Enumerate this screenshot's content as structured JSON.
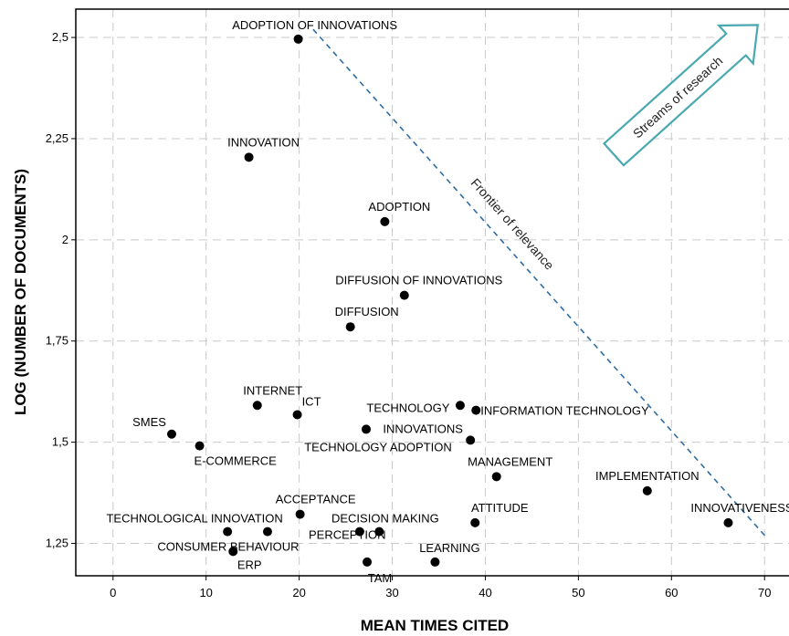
{
  "chart_data": {
    "type": "scatter",
    "xlabel": "MEAN TIMES CITED",
    "ylabel": "LOG (NUMBER OF DOCUMENTS)",
    "xlim": [
      -4,
      74
    ],
    "ylim": [
      1.17,
      2.57
    ],
    "x_ticks": [
      {
        "value": 0,
        "label": "0"
      },
      {
        "value": 10,
        "label": "10"
      },
      {
        "value": 20,
        "label": "20"
      },
      {
        "value": 30,
        "label": "30"
      },
      {
        "value": 40,
        "label": "40"
      },
      {
        "value": 50,
        "label": "50"
      },
      {
        "value": 60,
        "label": "60"
      },
      {
        "value": 70,
        "label": "70"
      }
    ],
    "y_ticks": [
      {
        "value": 1.25,
        "label": "1,25"
      },
      {
        "value": 1.5,
        "label": "1,5"
      },
      {
        "value": 1.75,
        "label": "1,75"
      },
      {
        "value": 2.0,
        "label": "2"
      },
      {
        "value": 2.25,
        "label": "2,25"
      },
      {
        "value": 2.5,
        "label": "2,5"
      }
    ],
    "grid": true,
    "marker_color": "#000000",
    "points": [
      {
        "label": "ADOPTION OF INNOVATIONS",
        "x": 19.9,
        "y": 2.496
      },
      {
        "label": "INNOVATION",
        "x": 14.6,
        "y": 2.204
      },
      {
        "label": "ADOPTION",
        "x": 29.2,
        "y": 2.045
      },
      {
        "label": "DIFFUSION OF INNOVATIONS",
        "x": 31.3,
        "y": 1.863
      },
      {
        "label": "DIFFUSION",
        "x": 25.5,
        "y": 1.785
      },
      {
        "label": "INTERNET",
        "x": 15.5,
        "y": 1.591
      },
      {
        "label": "ICT",
        "x": 19.8,
        "y": 1.568
      },
      {
        "label": "TECHNOLOGY",
        "x": 37.3,
        "y": 1.591
      },
      {
        "label": "INFORMATION TECHNOLOGY",
        "x": 39.0,
        "y": 1.579
      },
      {
        "label": "SMES",
        "x": 6.3,
        "y": 1.52
      },
      {
        "label": "E-COMMERCE",
        "x": 9.3,
        "y": 1.491
      },
      {
        "label": "TECHNOLOGY ADOPTION",
        "x": 27.2,
        "y": 1.532
      },
      {
        "label": "INNOVATIONS",
        "x": 38.4,
        "y": 1.505
      },
      {
        "label": "MANAGEMENT",
        "x": 41.2,
        "y": 1.415
      },
      {
        "label": "IMPLEMENTATION",
        "x": 57.4,
        "y": 1.38
      },
      {
        "label": "INNOVATIVENESS",
        "x": 66.1,
        "y": 1.301
      },
      {
        "label": "ACCEPTANCE",
        "x": 20.1,
        "y": 1.322
      },
      {
        "label": "ATTITUDE",
        "x": 38.9,
        "y": 1.301
      },
      {
        "label": "TECHNOLOGICAL INNOVATION",
        "x": 12.3,
        "y": 1.279
      },
      {
        "label": "CONSUMER BEHAVIOUR",
        "x": 16.6,
        "y": 1.279
      },
      {
        "label": "ERP",
        "x": 12.9,
        "y": 1.23
      },
      {
        "label": "DECISION MAKING",
        "x": 26.5,
        "y": 1.279
      },
      {
        "label": "PERCEPTION",
        "x": 28.6,
        "y": 1.279
      },
      {
        "label": "TAM",
        "x": 27.3,
        "y": 1.204
      },
      {
        "label": "LEARNING",
        "x": 34.6,
        "y": 1.204
      }
    ],
    "annotations": [
      {
        "text": "Frontier of relevance",
        "line_from": {
          "x": 21.5,
          "y": 2.52
        },
        "line_to": {
          "x": 70.2,
          "y": 1.265
        },
        "line_color": "#2e6da4",
        "line_style": "dashed"
      },
      {
        "text": "Streams of research",
        "style": "arrow pointing up-right",
        "color": "#4aa8b0"
      }
    ]
  }
}
